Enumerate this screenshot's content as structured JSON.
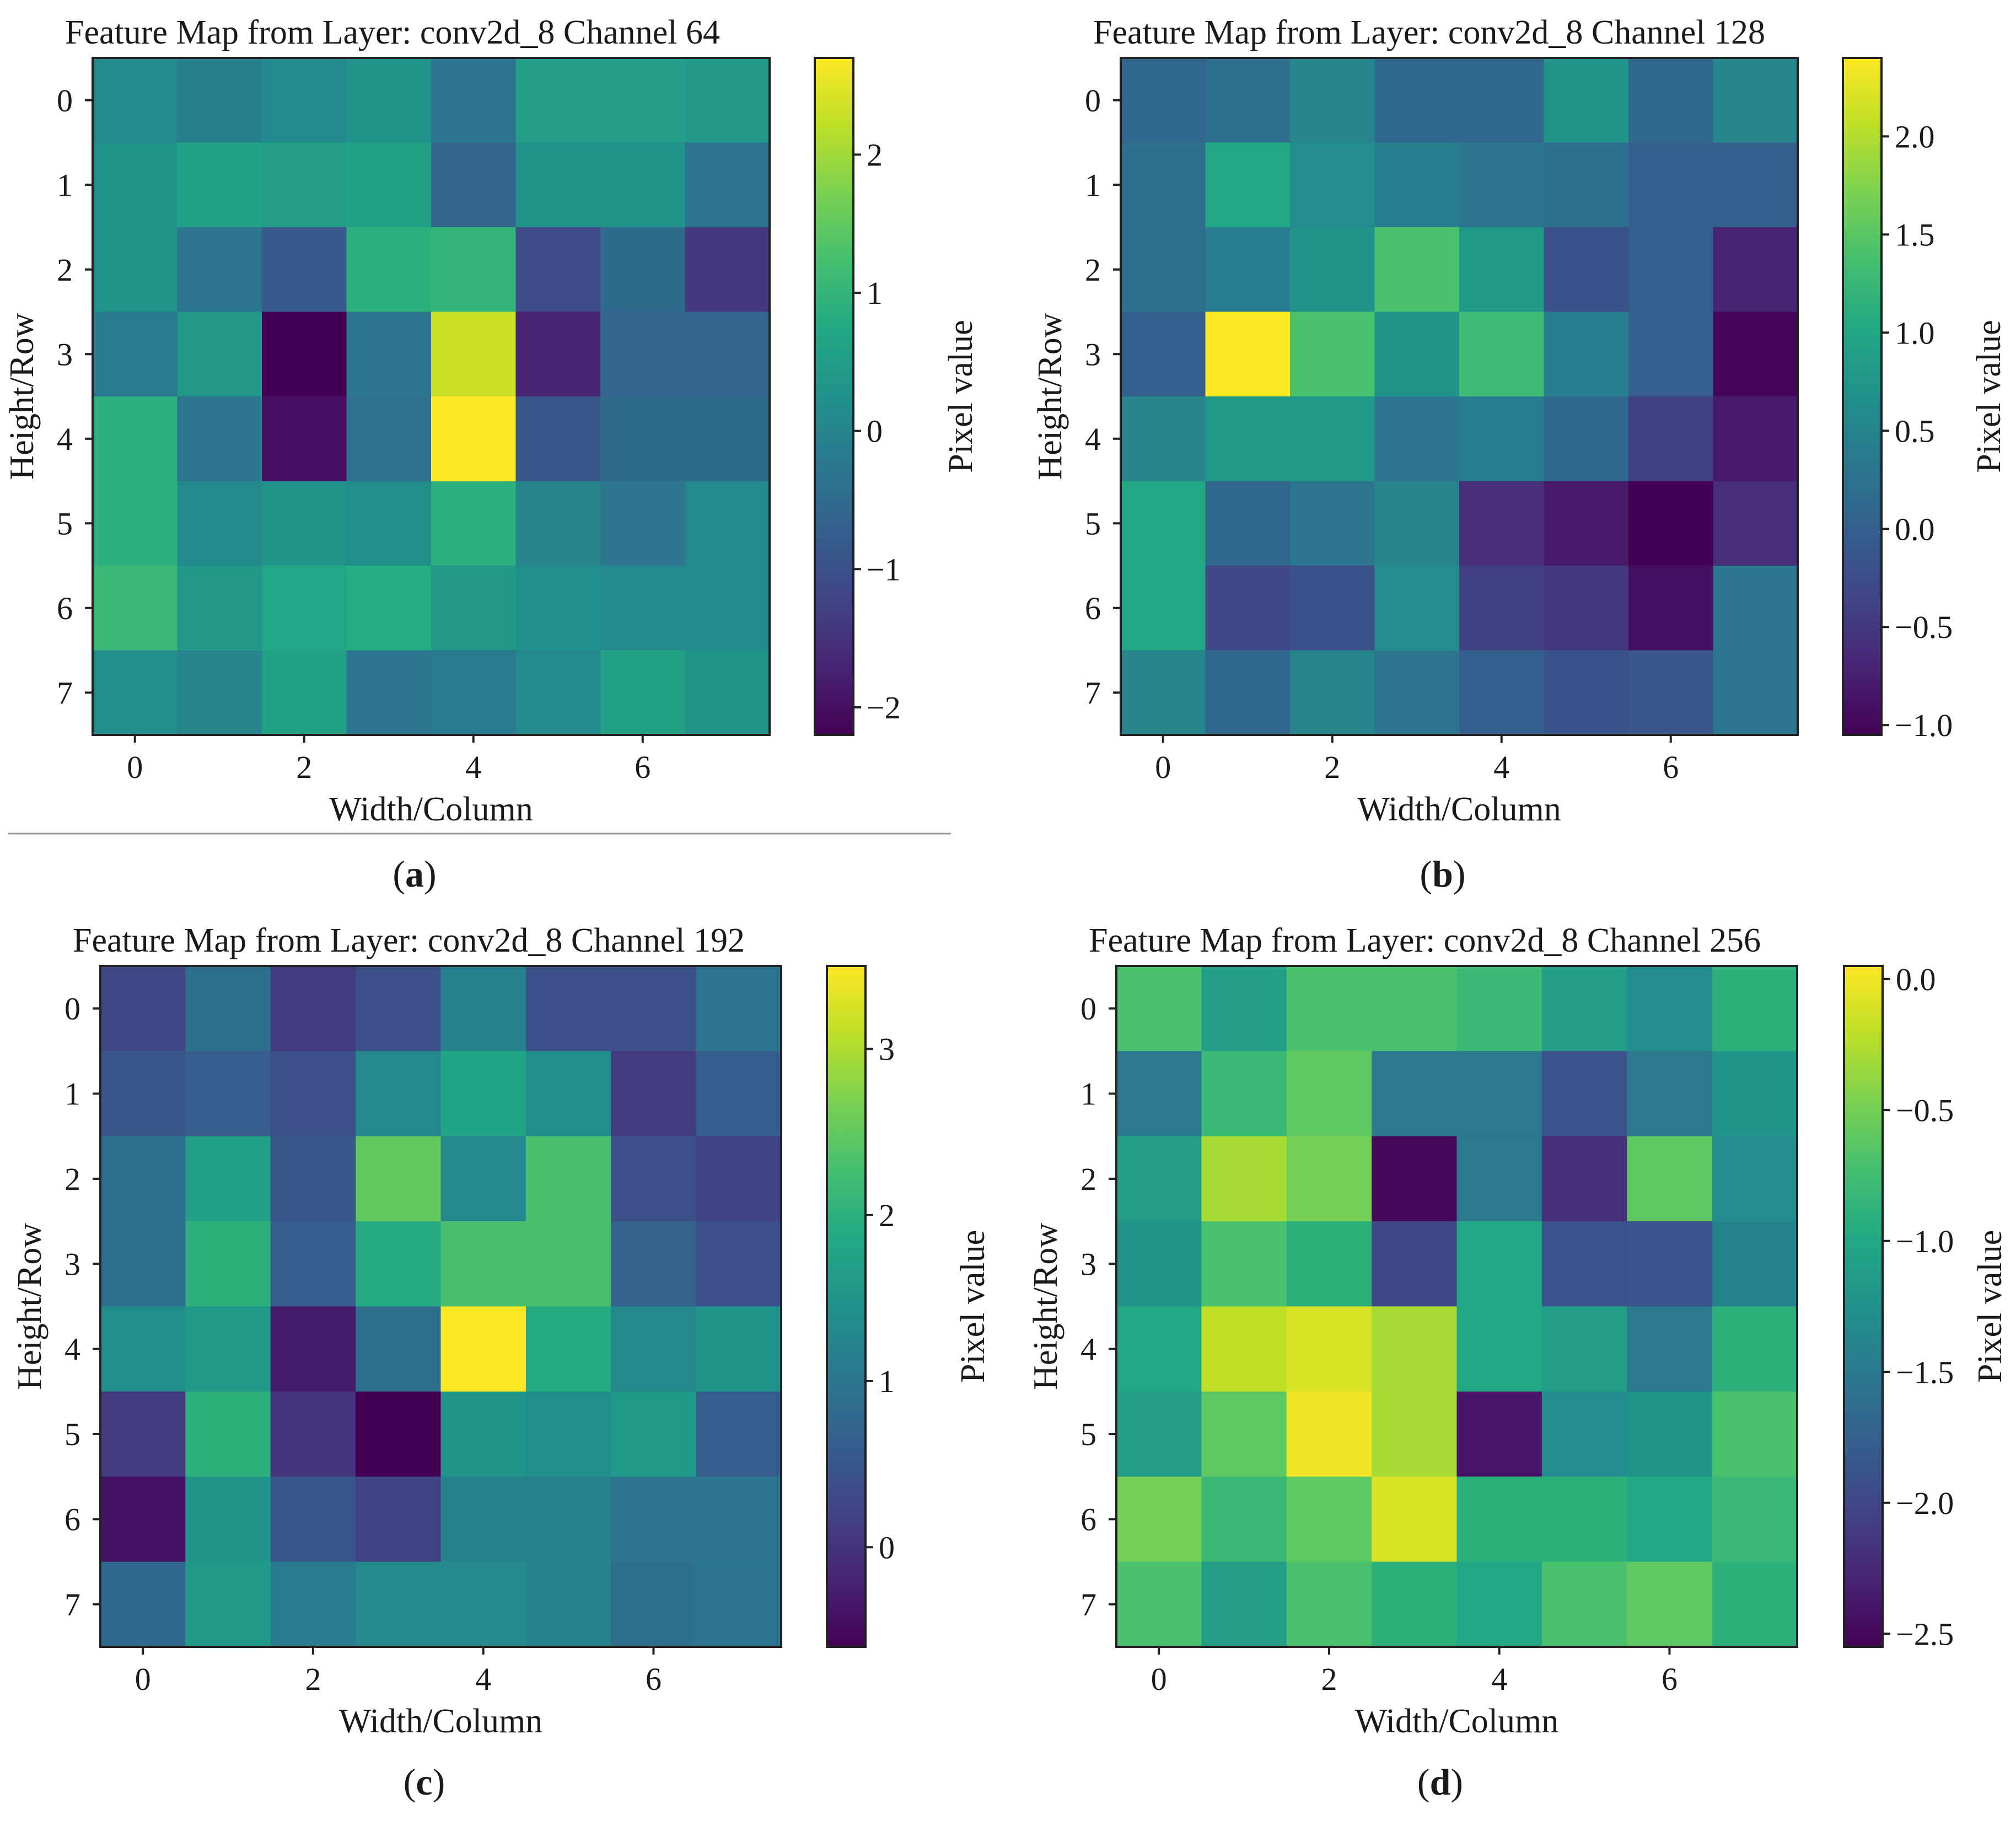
{
  "chart_data": [
    {
      "type": "heatmap",
      "title": "Feature Map from Layer: conv2d_8 Channel 64",
      "xlabel": "Width/Column",
      "ylabel": "Height/Row",
      "colorbar_label": "Pixel value",
      "caption": "a",
      "colormap": "viridis",
      "xticks": [
        0,
        2,
        4,
        6
      ],
      "yticks": [
        0,
        1,
        2,
        3,
        4,
        5,
        6,
        7
      ],
      "vmin": -2.2,
      "vmax": 2.7,
      "colorbar_ticks": [
        -2,
        -1,
        0,
        1,
        2
      ],
      "colorbar_tick_labels": [
        "−2",
        "−1",
        "0",
        "1",
        "2"
      ],
      "values": [
        [
          0.1,
          -0.1,
          0.1,
          0.3,
          -0.3,
          0.5,
          0.5,
          0.4
        ],
        [
          0.3,
          0.6,
          0.5,
          0.6,
          -0.6,
          0.3,
          0.3,
          -0.3
        ],
        [
          0.3,
          -0.3,
          -0.8,
          0.9,
          1.0,
          -1.1,
          -0.5,
          -1.4
        ],
        [
          -0.2,
          0.4,
          -2.2,
          -0.3,
          2.3,
          -1.7,
          -0.6,
          -0.6
        ],
        [
          0.9,
          -0.3,
          -2.0,
          -0.4,
          2.7,
          -0.9,
          -0.5,
          -0.5
        ],
        [
          0.9,
          0.1,
          0.3,
          0.2,
          0.9,
          0.0,
          -0.3,
          0.1
        ],
        [
          1.1,
          0.4,
          0.7,
          0.8,
          0.4,
          0.2,
          0.1,
          0.1
        ],
        [
          0.2,
          0.0,
          0.6,
          -0.3,
          -0.2,
          0.1,
          0.6,
          0.3
        ]
      ]
    },
    {
      "type": "heatmap",
      "title": "Feature Map from Layer: conv2d_8 Channel 128",
      "xlabel": "Width/Column",
      "ylabel": "Height/Row",
      "colorbar_label": "Pixel value",
      "caption": "b",
      "colormap": "viridis",
      "xticks": [
        0,
        2,
        4,
        6
      ],
      "yticks": [
        0,
        1,
        2,
        3,
        4,
        5,
        6,
        7
      ],
      "vmin": -1.05,
      "vmax": 2.4,
      "colorbar_ticks": [
        -1.0,
        -0.5,
        0.0,
        0.5,
        1.0,
        1.5,
        2.0
      ],
      "colorbar_tick_labels": [
        "−1.0",
        "−0.5",
        "0.0",
        "0.5",
        "1.0",
        "1.5",
        "2.0"
      ],
      "values": [
        [
          0.1,
          0.2,
          0.5,
          0.1,
          0.1,
          0.7,
          0.1,
          0.5
        ],
        [
          0.2,
          1.0,
          0.6,
          0.4,
          0.3,
          0.2,
          0.0,
          0.0
        ],
        [
          0.2,
          0.4,
          0.7,
          1.4,
          0.8,
          -0.2,
          0.0,
          -0.7
        ],
        [
          0.0,
          2.4,
          1.4,
          0.7,
          1.3,
          0.4,
          0.0,
          -1.0
        ],
        [
          0.5,
          0.8,
          0.8,
          0.3,
          0.4,
          0.1,
          -0.4,
          -0.8
        ],
        [
          1.0,
          0.1,
          0.3,
          0.5,
          -0.6,
          -0.8,
          -1.05,
          -0.6
        ],
        [
          1.0,
          -0.3,
          -0.2,
          0.6,
          -0.4,
          -0.5,
          -0.9,
          0.3
        ],
        [
          0.5,
          0.1,
          0.5,
          0.3,
          0.0,
          -0.2,
          -0.1,
          0.3
        ]
      ]
    },
    {
      "type": "heatmap",
      "title": "Feature Map from Layer: conv2d_8 Channel 192",
      "xlabel": "Width/Column",
      "ylabel": "Height/Row",
      "colorbar_label": "Pixel value",
      "caption": "c",
      "colormap": "viridis",
      "xticks": [
        0,
        2,
        4,
        6
      ],
      "yticks": [
        0,
        1,
        2,
        3,
        4,
        5,
        6,
        7
      ],
      "vmin": -0.6,
      "vmax": 3.5,
      "colorbar_ticks": [
        0,
        1,
        2,
        3
      ],
      "colorbar_tick_labels": [
        "0",
        "1",
        "2",
        "3"
      ],
      "values": [
        [
          0.3,
          0.9,
          0.1,
          0.4,
          1.2,
          0.4,
          0.4,
          1.0
        ],
        [
          0.5,
          0.6,
          0.4,
          1.3,
          1.8,
          1.4,
          0.1,
          0.6
        ],
        [
          0.9,
          1.7,
          0.5,
          2.5,
          1.3,
          2.3,
          0.4,
          0.2
        ],
        [
          0.9,
          2.0,
          0.6,
          1.9,
          2.3,
          2.3,
          0.7,
          0.4
        ],
        [
          1.4,
          1.6,
          -0.3,
          0.9,
          3.5,
          1.9,
          1.3,
          1.5
        ],
        [
          0.1,
          2.0,
          0.0,
          -0.6,
          1.5,
          1.4,
          1.6,
          0.6
        ],
        [
          -0.4,
          1.5,
          0.5,
          0.2,
          1.2,
          1.2,
          1.0,
          1.0
        ],
        [
          0.8,
          1.6,
          1.1,
          1.3,
          1.3,
          1.2,
          0.9,
          1.0
        ]
      ]
    },
    {
      "type": "heatmap",
      "title": "Feature Map from Layer: conv2d_8 Channel 256",
      "xlabel": "Width/Column",
      "ylabel": "Height/Row",
      "colorbar_label": "Pixel value",
      "caption": "d",
      "colormap": "viridis",
      "xticks": [
        0,
        2,
        4,
        6
      ],
      "yticks": [
        0,
        1,
        2,
        3,
        4,
        5,
        6,
        7
      ],
      "vmin": -2.55,
      "vmax": 0.05,
      "colorbar_ticks": [
        -2.5,
        -2.0,
        -1.5,
        -1.0,
        -0.5,
        0.0
      ],
      "colorbar_tick_labels": [
        "−2.5",
        "−2.0",
        "−1.5",
        "−1.0",
        "−0.5",
        "0.0"
      ],
      "values": [
        [
          -0.7,
          -1.1,
          -0.7,
          -0.7,
          -0.8,
          -1.1,
          -1.3,
          -0.9
        ],
        [
          -1.5,
          -0.8,
          -0.6,
          -1.5,
          -1.5,
          -1.9,
          -1.5,
          -1.2
        ],
        [
          -1.1,
          -0.3,
          -0.5,
          -2.5,
          -1.5,
          -2.2,
          -0.6,
          -1.3
        ],
        [
          -1.2,
          -0.7,
          -0.9,
          -2.0,
          -1.0,
          -1.9,
          -1.9,
          -1.4
        ],
        [
          -1.0,
          -0.2,
          -0.1,
          -0.3,
          -1.0,
          -1.1,
          -1.5,
          -0.9
        ],
        [
          -1.1,
          -0.6,
          0.0,
          -0.3,
          -2.4,
          -1.3,
          -1.2,
          -0.7
        ],
        [
          -0.5,
          -0.8,
          -0.6,
          -0.1,
          -0.9,
          -0.9,
          -1.0,
          -0.8
        ],
        [
          -0.7,
          -1.1,
          -0.7,
          -0.9,
          -1.0,
          -0.7,
          -0.6,
          -0.9
        ]
      ]
    }
  ],
  "colors": {
    "text": "#1a1a1a",
    "frame": "#222222",
    "divider": "#9a9a9a",
    "background": "#ffffff"
  }
}
